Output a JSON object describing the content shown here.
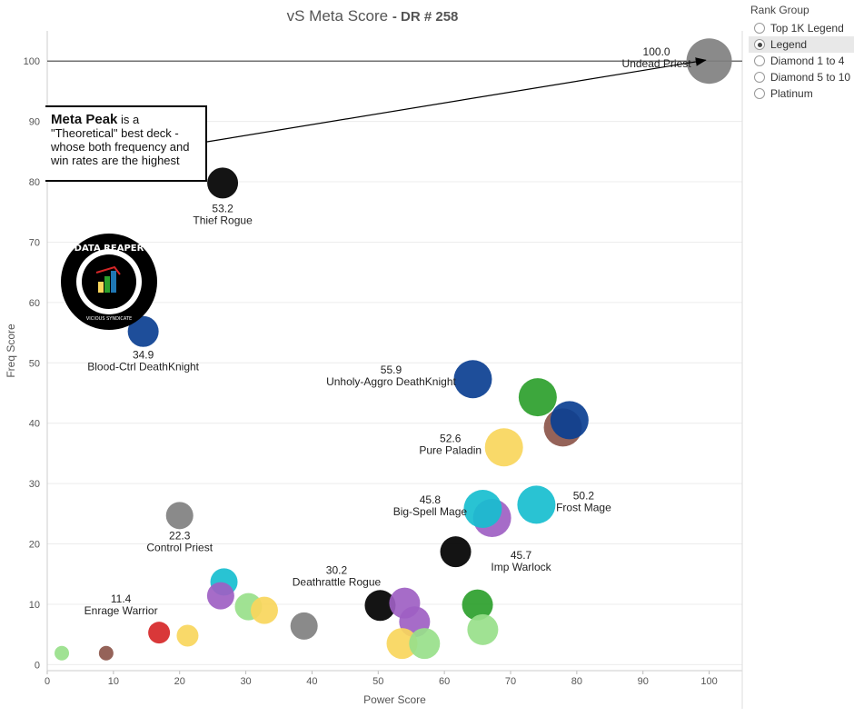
{
  "title": {
    "main": "vS Meta Score",
    "sub": "DR # 258"
  },
  "legend": {
    "title": "Rank Group",
    "items": [
      {
        "label": "Top 1K Legend",
        "selected": false
      },
      {
        "label": "Legend",
        "selected": true
      },
      {
        "label": "Diamond 1 to 4",
        "selected": false
      },
      {
        "label": "Diamond 5 to 10",
        "selected": false
      },
      {
        "label": "Platinum",
        "selected": false
      }
    ]
  },
  "callout": {
    "bold": "Meta Peak",
    "text1": " is a",
    "text2": "\"Theoretical\" best deck -",
    "text3": "whose both frequency and",
    "text4": "win rates are the highest"
  },
  "logo": {
    "text": "DATA REAPER REPORT",
    "subtext": "VICIOUS SYNDICATE PRESENTS"
  },
  "chart_data": {
    "type": "scatter",
    "title": "vS Meta Score - DR # 258",
    "xlabel": "Power Score",
    "ylabel": "Freq Score",
    "xlim": [
      0,
      105
    ],
    "ylim": [
      -1,
      105
    ],
    "xticks": [
      0,
      10,
      20,
      30,
      40,
      50,
      60,
      70,
      80,
      90,
      100
    ],
    "yticks": [
      0,
      10,
      20,
      30,
      40,
      50,
      60,
      70,
      80,
      90,
      100
    ],
    "reference_line": {
      "y": 100
    },
    "grid": "horizontal",
    "points": [
      {
        "x": 100,
        "y": 100,
        "color": "#808080",
        "size": "xl",
        "label": "Undead Priest",
        "value": "100.0"
      },
      {
        "x": 26.5,
        "y": 79.8,
        "color": "#000000",
        "size": "m",
        "label": "Thief Rogue",
        "value": "53.2"
      },
      {
        "x": 14.5,
        "y": 55.2,
        "color": "#0b3f91",
        "size": "m",
        "label": "Blood-Ctrl DeathKnight",
        "value": "34.9"
      },
      {
        "x": 64.3,
        "y": 47.3,
        "color": "#0b3f91",
        "size": "l",
        "label": "Unholy-Aggro DeathKnight",
        "value": "55.9"
      },
      {
        "x": 74.1,
        "y": 44.3,
        "color": "#2ca02c",
        "size": "l"
      },
      {
        "x": 77.9,
        "y": 39.3,
        "color": "#8c564b",
        "size": "l"
      },
      {
        "x": 78.9,
        "y": 40.5,
        "color": "#0b3f91",
        "size": "l"
      },
      {
        "x": 69.0,
        "y": 36.0,
        "color": "#f9d65c",
        "size": "l",
        "label": "Pure Paladin",
        "value": "52.6"
      },
      {
        "x": 67.2,
        "y": 24.3,
        "color": "#9e5fc3",
        "size": "l"
      },
      {
        "x": 65.8,
        "y": 25.8,
        "color": "#17becf",
        "size": "l",
        "label": "Big-Spell Mage",
        "value": "45.8"
      },
      {
        "x": 73.9,
        "y": 26.5,
        "color": "#17becf",
        "size": "l",
        "label": "Frost Mage",
        "value": "50.2"
      },
      {
        "x": 61.7,
        "y": 18.7,
        "color": "#000000",
        "size": "m",
        "label": "Imp Warlock",
        "value": "45.7"
      },
      {
        "x": 20.0,
        "y": 24.7,
        "color": "#808080",
        "size": "s",
        "label": "Control Priest",
        "value": "22.3"
      },
      {
        "x": 26.7,
        "y": 13.7,
        "color": "#17becf",
        "size": "s"
      },
      {
        "x": 26.2,
        "y": 11.4,
        "color": "#9e5fc3",
        "size": "s"
      },
      {
        "x": 30.4,
        "y": 9.6,
        "color": "#98df8a",
        "size": "s"
      },
      {
        "x": 32.8,
        "y": 9.0,
        "color": "#f9d65c",
        "size": "s"
      },
      {
        "x": 38.8,
        "y": 6.4,
        "color": "#808080",
        "size": "s"
      },
      {
        "x": 50.3,
        "y": 9.8,
        "color": "#000000",
        "size": "m",
        "label": "Deathrattle Rogue",
        "value": "30.2"
      },
      {
        "x": 54.0,
        "y": 10.2,
        "color": "#9e5fc3",
        "size": "m"
      },
      {
        "x": 55.5,
        "y": 7.1,
        "color": "#9e5fc3",
        "size": "m"
      },
      {
        "x": 53.6,
        "y": 3.5,
        "color": "#f9d65c",
        "size": "m"
      },
      {
        "x": 57.0,
        "y": 3.5,
        "color": "#98df8a",
        "size": "m"
      },
      {
        "x": 65.0,
        "y": 9.9,
        "color": "#2ca02c",
        "size": "m"
      },
      {
        "x": 65.8,
        "y": 5.8,
        "color": "#98df8a",
        "size": "m"
      },
      {
        "x": 16.9,
        "y": 5.3,
        "color": "#d62728",
        "size": "xs",
        "label": "Enrage Warrior",
        "value": "11.4"
      },
      {
        "x": 21.2,
        "y": 4.8,
        "color": "#f9d65c",
        "size": "xs"
      },
      {
        "x": 2.2,
        "y": 1.9,
        "color": "#98df8a",
        "size": "xxs"
      },
      {
        "x": 8.9,
        "y": 1.9,
        "color": "#8c564b",
        "size": "xxs"
      }
    ]
  }
}
